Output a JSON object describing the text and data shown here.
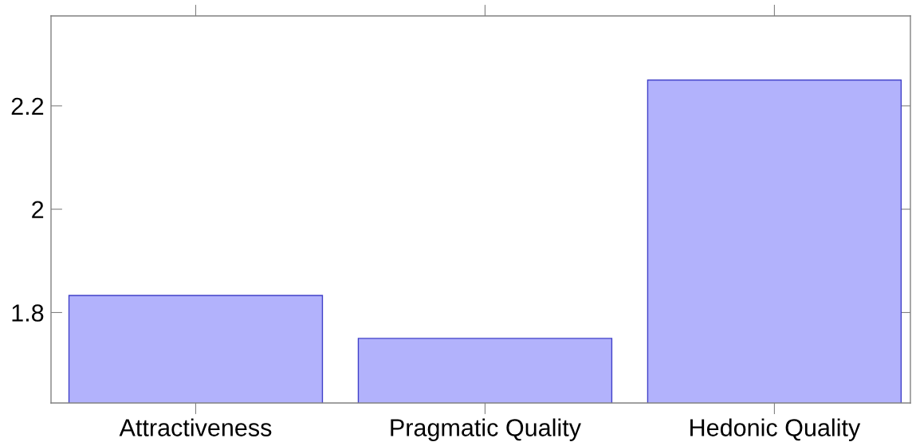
{
  "chart_data": {
    "type": "bar",
    "categories": [
      "Attractiveness",
      "Pragmatic Quality",
      "Hedonic Quality"
    ],
    "values": [
      1.833,
      1.75,
      2.25
    ],
    "color": "#b2b2fc",
    "ylim": [
      1.625,
      2.374
    ],
    "yticks": [
      1.8,
      2,
      2.2
    ],
    "grid": false
  }
}
